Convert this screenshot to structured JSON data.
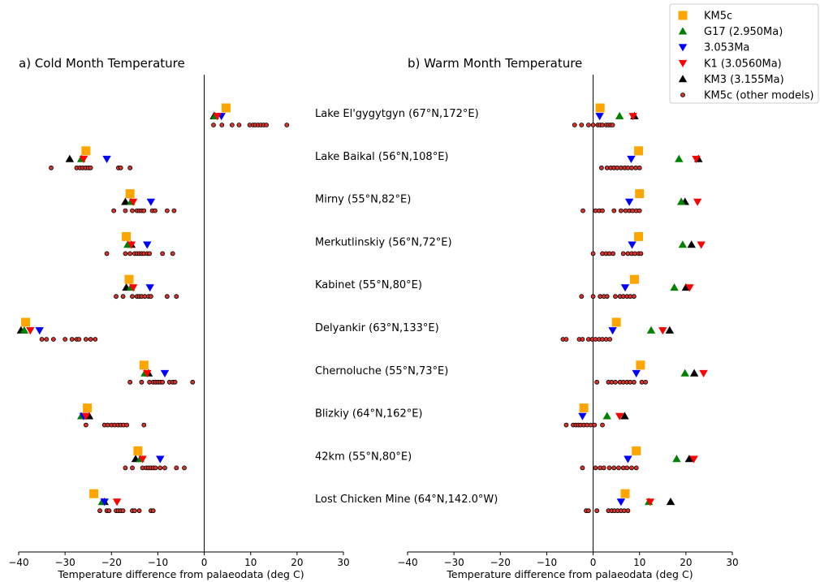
{
  "chart_data": [
    {
      "type": "scatter",
      "title": "a) Cold Month Temperature",
      "xlabel": "Temperature difference from palaeodata (deg C)",
      "xlim": [
        -40,
        30
      ],
      "xticks": [
        -40,
        -30,
        -20,
        -10,
        0,
        10,
        20,
        30
      ],
      "vline_at": 0,
      "sites": [
        {
          "label": "Lake El'gygytgyn (67°N,172°E)",
          "KM5c": 4.7,
          "G17": 2.3,
          "3.053Ma": 3.7,
          "K1": 2.8,
          "KM3": 2.1,
          "other": [
            2.0,
            3.8,
            6.0,
            7.5,
            9.8,
            10.5,
            11.0,
            11.6,
            12.2,
            12.8,
            13.4,
            17.8
          ]
        },
        {
          "label": "Lake Baikal (56°N,108°E)",
          "KM5c": -25.5,
          "G17": -26.5,
          "3.053Ma": -21.0,
          "K1": -26.0,
          "KM3": -29.0,
          "other": [
            -33.0,
            -27.5,
            -26.8,
            -26.2,
            -25.6,
            -25.0,
            -24.5,
            -18.5,
            -18.0,
            -16.0
          ]
        },
        {
          "label": "Mirny (55°N,82°E)",
          "KM5c": -16.0,
          "G17": -15.8,
          "3.053Ma": -11.5,
          "K1": -15.3,
          "KM3": -17.0,
          "other": [
            -19.5,
            -17.0,
            -15.5,
            -14.5,
            -14.0,
            -13.5,
            -13.0,
            -11.2,
            -10.6,
            -8.0,
            -6.5
          ]
        },
        {
          "label": "Merkutlinskiy (56°N,72°E)",
          "KM5c": -16.8,
          "G17": -16.5,
          "3.053Ma": -12.3,
          "K1": -15.7,
          "KM3": -15.7,
          "other": [
            -21.0,
            -17.0,
            -16.0,
            -15.0,
            -14.5,
            -14.0,
            -13.5,
            -13.0,
            -12.3,
            -11.8,
            -9.0,
            -6.8
          ]
        },
        {
          "label": "Kabinet (55°N,80°E)",
          "KM5c": -16.2,
          "G17": -15.8,
          "3.053Ma": -11.7,
          "K1": -15.3,
          "KM3": -16.8,
          "other": [
            -19.0,
            -17.5,
            -15.5,
            -14.5,
            -14.0,
            -13.5,
            -12.8,
            -12.0,
            -11.5,
            -8.0,
            -6.0
          ]
        },
        {
          "label": "Delyankir (63°N,133°E)",
          "KM5c": -38.5,
          "G17": -38.8,
          "3.053Ma": -35.5,
          "K1": -37.5,
          "KM3": -39.5,
          "other": [
            -35.0,
            -34.0,
            -32.5,
            -30.0,
            -28.5,
            -27.5,
            -27.0,
            -25.5,
            -24.5,
            -23.5
          ]
        },
        {
          "label": "Chernoluche (55°N,73°E)",
          "KM5c": -13.0,
          "G17": -12.8,
          "3.053Ma": -8.5,
          "K1": -12.3,
          "KM3": -12.0,
          "other": [
            -16.0,
            -13.5,
            -11.8,
            -11.0,
            -10.5,
            -10.0,
            -9.5,
            -9.0,
            -7.5,
            -6.8,
            -6.3,
            -2.5
          ]
        },
        {
          "label": "Blizkiy (64°N,162°E)",
          "KM5c": -25.2,
          "G17": -26.5,
          "3.053Ma": -26.0,
          "K1": -25.5,
          "KM3": -24.8,
          "other": [
            -25.5,
            -21.5,
            -20.8,
            -20.0,
            -19.3,
            -18.6,
            -18.0,
            -17.4,
            -16.7,
            -13.0
          ]
        },
        {
          "label": "42km (55°N,80°E)",
          "KM5c": -14.3,
          "G17": -13.8,
          "3.053Ma": -9.5,
          "K1": -13.3,
          "KM3": -14.8,
          "other": [
            -17.0,
            -15.5,
            -13.3,
            -12.5,
            -12.0,
            -11.5,
            -11.0,
            -10.5,
            -9.5,
            -8.5,
            -6.0,
            -4.3
          ]
        },
        {
          "label": "Lost Chicken Mine (64°N,142.0°W)",
          "KM5c": -23.8,
          "G17": -22.0,
          "3.053Ma": -21.5,
          "K1": -18.8,
          "KM3": -21.5,
          "other": [
            -22.5,
            -21.0,
            -20.5,
            -19.0,
            -18.5,
            -18.0,
            -17.5,
            -15.5,
            -15.0,
            -14.0,
            -11.5,
            -11.0
          ]
        }
      ]
    },
    {
      "type": "scatter",
      "title": "b) Warm Month Temperature",
      "xlabel": "Temperature difference from palaeodata (deg C)",
      "xlim": [
        -40,
        30
      ],
      "xticks": [
        -40,
        -30,
        -20,
        -10,
        0,
        10,
        20,
        30
      ],
      "vline_at": 0,
      "sites": [
        {
          "label": "Lake El'gygytgyn (67°N,172°E)",
          "KM5c": 1.5,
          "G17": 5.7,
          "3.053Ma": 1.4,
          "K1": 8.6,
          "KM3": 8.9,
          "other": [
            -4.0,
            -2.5,
            -1.0,
            0.0,
            1.0,
            1.5,
            2.0,
            2.8,
            3.3,
            3.8,
            4.2
          ]
        },
        {
          "label": "Lake Baikal (56°N,108°E)",
          "KM5c": 9.8,
          "G17": 18.5,
          "3.053Ma": 8.2,
          "K1": 22.2,
          "KM3": 22.7,
          "other": [
            1.8,
            3.0,
            3.8,
            4.5,
            5.2,
            6.0,
            6.8,
            7.5,
            8.3,
            9.2,
            10.0
          ]
        },
        {
          "label": "Mirny (55°N,82°E)",
          "KM5c": 10.0,
          "G17": 19.0,
          "3.053Ma": 7.8,
          "K1": 22.5,
          "KM3": 19.8,
          "other": [
            -2.2,
            0.5,
            1.3,
            2.0,
            4.5,
            6.0,
            7.0,
            7.8,
            8.5,
            9.3,
            10.0
          ]
        },
        {
          "label": "Merkutlinskiy (56°N,72°E)",
          "KM5c": 9.8,
          "G17": 19.3,
          "3.053Ma": 8.4,
          "K1": 23.3,
          "KM3": 21.2,
          "other": [
            0.0,
            2.0,
            2.8,
            3.5,
            4.3,
            6.5,
            7.5,
            8.3,
            9.0,
            9.8,
            10.3
          ]
        },
        {
          "label": "Kabinet (55°N,80°E)",
          "KM5c": 8.9,
          "G17": 17.5,
          "3.053Ma": 6.9,
          "K1": 20.8,
          "KM3": 20.0,
          "other": [
            -2.5,
            0.0,
            1.5,
            2.3,
            3.0,
            4.8,
            5.8,
            6.5,
            7.3,
            8.0,
            8.8
          ]
        },
        {
          "label": "Delyankir (63°N,133°E)",
          "KM5c": 5.0,
          "G17": 12.5,
          "3.053Ma": 4.2,
          "K1": 15.0,
          "KM3": 16.5,
          "other": [
            -6.5,
            -5.8,
            -3.0,
            -2.3,
            -1.0,
            -0.2,
            0.5,
            1.3,
            2.0,
            2.8,
            3.6
          ]
        },
        {
          "label": "Chernoluche (55°N,73°E)",
          "KM5c": 10.2,
          "G17": 19.8,
          "3.053Ma": 9.3,
          "K1": 23.8,
          "KM3": 21.8,
          "other": [
            0.8,
            3.3,
            4.0,
            4.8,
            5.8,
            6.5,
            7.3,
            8.0,
            8.8,
            10.5,
            11.3
          ]
        },
        {
          "label": "Blizkiy (64°N,162°E)",
          "KM5c": -2.0,
          "G17": 3.0,
          "3.053Ma": -2.3,
          "K1": 5.7,
          "KM3": 6.8,
          "other": [
            -5.8,
            -4.3,
            -3.7,
            -3.2,
            -2.7,
            -2.0,
            -1.3,
            -0.5,
            0.3,
            2.0
          ]
        },
        {
          "label": "42km (55°N,80°E)",
          "KM5c": 9.3,
          "G17": 18.0,
          "3.053Ma": 7.5,
          "K1": 21.7,
          "KM3": 20.7,
          "other": [
            -2.3,
            0.5,
            1.5,
            2.3,
            3.5,
            4.5,
            5.5,
            6.5,
            7.3,
            8.3,
            9.3
          ]
        },
        {
          "label": "Lost Chicken Mine (64°N,142.0°W)",
          "KM5c": 6.9,
          "G17": 12.0,
          "3.053Ma": 6.0,
          "K1": 12.3,
          "KM3": 16.7,
          "other": [
            -1.5,
            -1.0,
            0.8,
            3.3,
            4.0,
            4.6,
            5.3,
            6.0,
            6.7,
            7.5
          ]
        }
      ]
    }
  ],
  "legend": {
    "placement": "top-right",
    "entries": [
      {
        "key": "KM5c",
        "label": "KM5c",
        "marker": "square",
        "color": "#FFA500"
      },
      {
        "key": "G17",
        "label": "G17 (2.950Ma)",
        "marker": "triangle-up",
        "color": "#008000"
      },
      {
        "key": "3.053Ma",
        "label": "3.053Ma",
        "marker": "triangle-down",
        "color": "#0000FF"
      },
      {
        "key": "K1",
        "label": "K1 (3.0560Ma)",
        "marker": "triangle-down",
        "color": "#FF0000"
      },
      {
        "key": "KM3",
        "label": "KM3 (3.155Ma)",
        "marker": "triangle-up",
        "color": "#000000"
      },
      {
        "key": "other",
        "label": "KM5c (other models)",
        "marker": "circle",
        "color": "#D9342B"
      }
    ]
  }
}
